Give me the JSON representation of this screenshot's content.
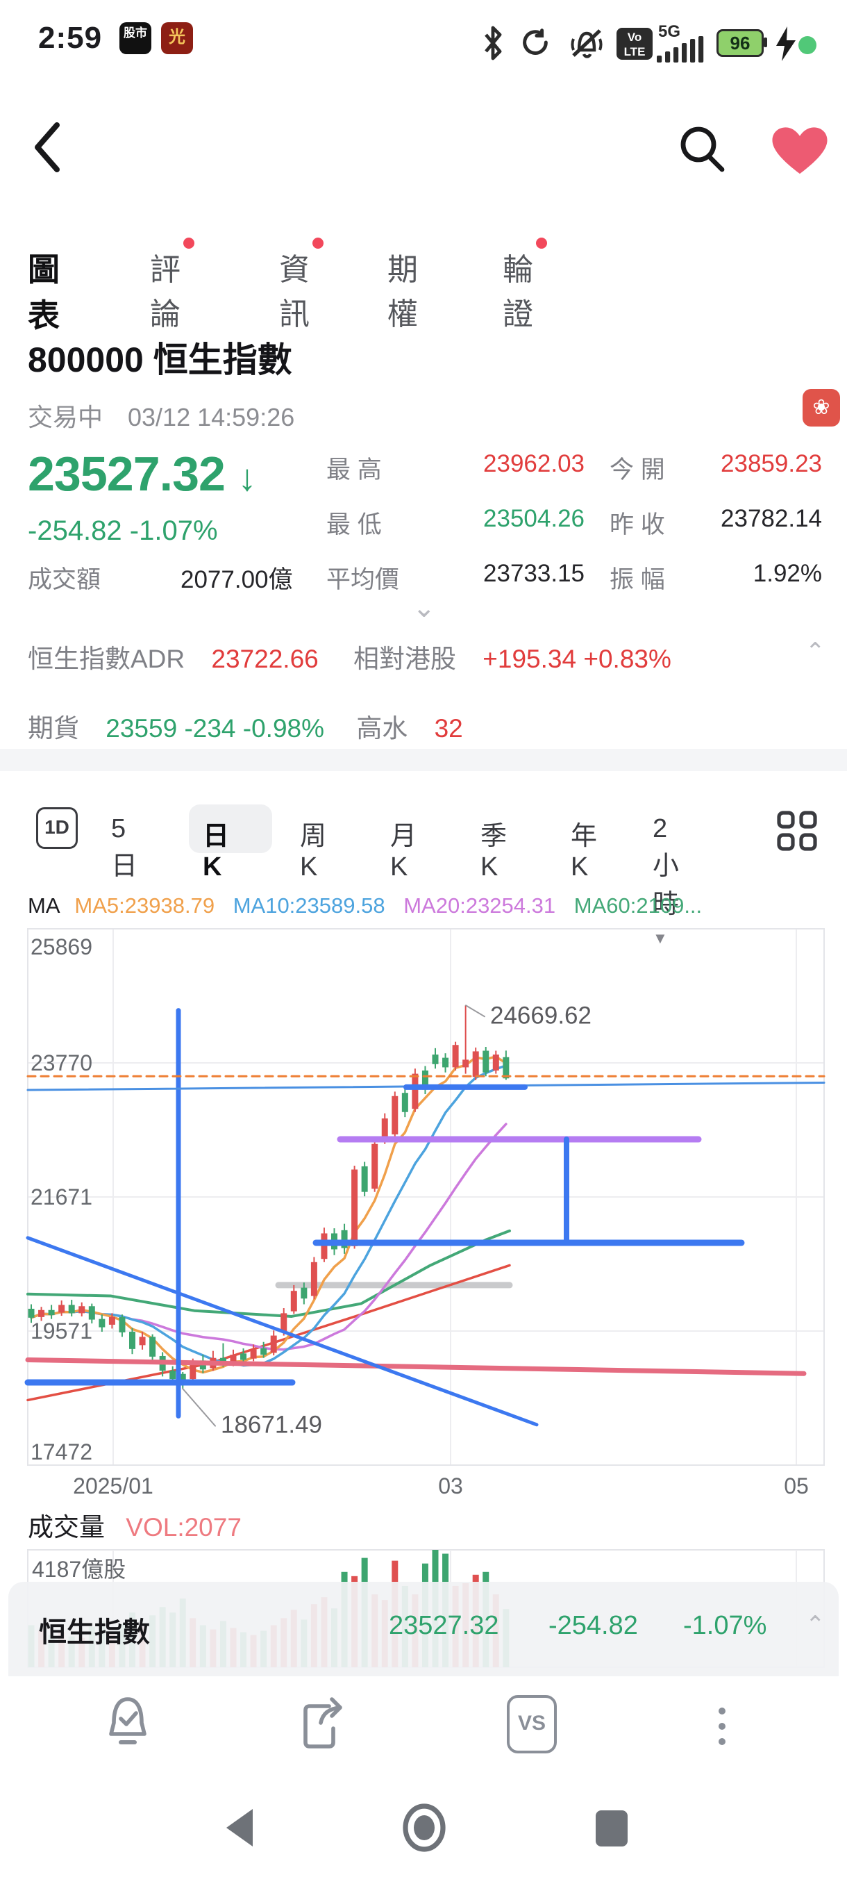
{
  "colors": {
    "up_red": "#e13c3c",
    "down_green": "#2ea26c",
    "candle_red": "#df5050",
    "candle_green": "#3da56f",
    "ma5": "#f0a04b",
    "ma10": "#4ca3de",
    "ma20": "#cc79dc",
    "ma60": "#43a877",
    "draw_blue": "#3c78f0",
    "draw_purple": "#b57cf2",
    "rose": "#e56b80",
    "thin_red": "#e34f44",
    "gray_level": "#c9cacc",
    "dashed_orange": "#ee7e32",
    "grid": "#ededf0",
    "axis_text": "#66696e"
  },
  "status_bar": {
    "time": "2:59",
    "app_icon_1": "股市",
    "app_icon_2": "光",
    "volte_top": "Vo",
    "volte_bottom": "LTE",
    "network": "5G",
    "battery_percent": "96"
  },
  "header": {
    "back_icon": "back-chevron",
    "search_icon": "magnifier",
    "favorite_icon": "heart"
  },
  "tabs": {
    "items": [
      {
        "label": "圖表",
        "active": true,
        "dot": false
      },
      {
        "label": "評論",
        "active": false,
        "dot": true
      },
      {
        "label": "資訊",
        "active": false,
        "dot": true
      },
      {
        "label": "期權",
        "active": false,
        "dot": false
      },
      {
        "label": "輪證",
        "active": false,
        "dot": true
      }
    ]
  },
  "stock": {
    "code_name": "800000  恒生指數",
    "status": "交易中",
    "timestamp": "03/12 14:59:26",
    "market_badge": "❀"
  },
  "quote": {
    "price": "23527.32",
    "direction": "↓",
    "change": "-254.82 -1.07%",
    "high_label": "最  高",
    "high": "23962.03",
    "open_label": "今  開",
    "open": "23859.23",
    "low_label": "最  低",
    "low": "23504.26",
    "prev_close_label": "昨  收",
    "prev_close": "23782.14",
    "turnover_label": "成交額",
    "turnover": "2077.00億",
    "avg_label": "平均價",
    "avg": "23733.15",
    "amp_label": "振  幅",
    "amplitude": "1.92%"
  },
  "adr": {
    "name": "恒生指數ADR",
    "value": "23722.66",
    "rel_label": "相對港股",
    "rel_value": "+195.34  +0.83%"
  },
  "futures": {
    "label": "期貨",
    "value": "23559  -234  -0.98%",
    "premium_label": "高水",
    "premium": "32"
  },
  "periods": {
    "items": [
      "5日",
      "日K",
      "周K",
      "月K",
      "季K",
      "年K"
    ],
    "one_d": "1D",
    "interval": "2小時",
    "interval_arrow": "▼",
    "active": "日K"
  },
  "ma_labels": {
    "prefix": "MA",
    "ma5": "MA5:23938.79",
    "ma10": "MA10:23589.58",
    "ma20": "MA20:23254.31",
    "ma60": "MA60:2109..."
  },
  "chart_data": {
    "type": "candlestick",
    "y_ticks": [
      25869,
      23770,
      21671,
      19571,
      17472
    ],
    "x_ticks": [
      {
        "x": 163,
        "label": "2025/01"
      },
      {
        "x": 649,
        "label": "03"
      },
      {
        "x": 1147,
        "label": "05"
      }
    ],
    "candles": [
      [
        19920,
        19990,
        19700,
        19780,
        1500
      ],
      [
        19790,
        19950,
        19730,
        19900,
        1300
      ],
      [
        19900,
        19980,
        19760,
        19820,
        1150
      ],
      [
        19860,
        20050,
        19810,
        19980,
        1250
      ],
      [
        19980,
        20060,
        19800,
        19850,
        1100
      ],
      [
        19850,
        20020,
        19800,
        19960,
        1050
      ],
      [
        19960,
        20000,
        19690,
        19750,
        1450
      ],
      [
        19760,
        19830,
        19560,
        19630,
        1650
      ],
      [
        19670,
        19850,
        19610,
        19790,
        1200
      ],
      [
        19790,
        19830,
        19480,
        19550,
        1550
      ],
      [
        19560,
        19620,
        19210,
        19290,
        1950
      ],
      [
        19350,
        19560,
        19280,
        19480,
        1450
      ],
      [
        19480,
        19520,
        19090,
        19170,
        1850
      ],
      [
        19180,
        19240,
        18860,
        18950,
        2150
      ],
      [
        18950,
        19020,
        18740,
        18820,
        1950
      ],
      [
        18900,
        18930,
        18671.49,
        18810,
        2450
      ],
      [
        18820,
        19140,
        18790,
        19070,
        1750
      ],
      [
        19110,
        19200,
        18910,
        18970,
        1500
      ],
      [
        18990,
        19260,
        18950,
        19150,
        1350
      ],
      [
        19150,
        19380,
        19010,
        19060,
        1650
      ],
      [
        19080,
        19280,
        19020,
        19200,
        1400
      ],
      [
        19220,
        19300,
        19060,
        19120,
        1250
      ],
      [
        19140,
        19360,
        19100,
        19280,
        1150
      ],
      [
        19300,
        19400,
        19150,
        19200,
        1300
      ],
      [
        19230,
        19580,
        19190,
        19500,
        1500
      ],
      [
        19550,
        19930,
        19500,
        19850,
        1750
      ],
      [
        19880,
        20290,
        19840,
        20200,
        2050
      ],
      [
        20250,
        20330,
        19990,
        20080,
        1700
      ],
      [
        20120,
        20730,
        20070,
        20650,
        2250
      ],
      [
        20700,
        21190,
        20650,
        21100,
        2500
      ],
      [
        21100,
        21180,
        20760,
        20850,
        2100
      ],
      [
        21150,
        21250,
        20780,
        20870,
        3400
      ],
      [
        20900,
        22160,
        20860,
        22100,
        3250
      ],
      [
        22150,
        22220,
        21680,
        21750,
        3900
      ],
      [
        21800,
        22560,
        21750,
        22500,
        2600
      ],
      [
        22550,
        22980,
        22500,
        22900,
        2400
      ],
      [
        22650,
        23320,
        22600,
        23250,
        3800
      ],
      [
        23300,
        23380,
        22920,
        23000,
        2900
      ],
      [
        23050,
        23680,
        23000,
        23600,
        2600
      ],
      [
        23650,
        23720,
        23280,
        23350,
        3700
      ],
      [
        23900,
        24000,
        23680,
        23750,
        4187
      ],
      [
        23850,
        23920,
        23620,
        23700,
        4050
      ],
      [
        23700,
        24100,
        23650,
        24050,
        2900
      ],
      [
        23700,
        24669.62,
        23600,
        23820,
        3000
      ],
      [
        23550,
        24010,
        23500,
        23950,
        3300
      ],
      [
        23960,
        24020,
        23560,
        23620,
        3400
      ],
      [
        23650,
        23960,
        23600,
        23900,
        2600
      ],
      [
        23859.23,
        23962.03,
        23504.26,
        23527.32,
        2077
      ]
    ],
    "annotations": [
      {
        "text": "24669.62",
        "anchor_x": 671,
        "anchor_price": 24669.62,
        "text_x": 706,
        "text_price": 24430
      },
      {
        "text": "18671.49",
        "anchor_x": 263,
        "anchor_price": 18671.49,
        "text_x": 318,
        "text_price": 18020
      }
    ],
    "price_line": {
      "price": 23560,
      "color": "#ee7e32"
    },
    "curves": [
      {
        "name": "ma60-line",
        "color": "#43a877",
        "width": 4,
        "points": [
          [
            40,
            20150
          ],
          [
            160,
            20120
          ],
          [
            280,
            19890
          ],
          [
            420,
            19800
          ],
          [
            520,
            20000
          ],
          [
            620,
            20600
          ],
          [
            700,
            21000
          ],
          [
            734,
            21140
          ]
        ]
      },
      {
        "name": "ma120-line",
        "color": "#e34f44",
        "width": 3.5,
        "points": [
          [
            40,
            18490
          ],
          [
            300,
            19060
          ],
          [
            520,
            19830
          ],
          [
            734,
            20600
          ]
        ]
      }
    ],
    "drawings": [
      {
        "name": "gray-level",
        "color": "#c9cacc",
        "width": 9,
        "points": [
          [
            401,
            20290
          ],
          [
            734,
            20290
          ]
        ]
      },
      {
        "name": "rose-trendline",
        "color": "#e56b80",
        "width": 7,
        "points": [
          [
            40,
            19120
          ],
          [
            1158,
            18905
          ]
        ]
      },
      {
        "name": "vertical-line",
        "color": "#3c78f0",
        "width": 7,
        "points": [
          [
            257,
            24590
          ],
          [
            257,
            18240
          ]
        ]
      },
      {
        "name": "trend-down-diagonal",
        "color": "#3c78f0",
        "width": 5,
        "points": [
          [
            40,
            21030
          ],
          [
            773,
            18105
          ]
        ]
      },
      {
        "name": "trend-flat-long",
        "color": "#4a90e2",
        "width": 3,
        "points": [
          [
            40,
            23345
          ],
          [
            1187,
            23460
          ]
        ]
      },
      {
        "name": "support-left",
        "color": "#3c78f0",
        "width": 9,
        "points": [
          [
            40,
            18766
          ],
          [
            421,
            18766
          ]
        ]
      },
      {
        "name": "resistance-top",
        "color": "#3c78f0",
        "width": 8,
        "points": [
          [
            585,
            23390
          ],
          [
            756,
            23390
          ]
        ]
      },
      {
        "name": "range-top-purple",
        "color": "#b57cf2",
        "width": 9,
        "points": [
          [
            490,
            22573
          ],
          [
            1006,
            22573
          ]
        ]
      },
      {
        "name": "range-connector",
        "color": "#3c78f0",
        "width": 8,
        "points": [
          [
            816,
            22573
          ],
          [
            816,
            20953
          ]
        ]
      },
      {
        "name": "range-bottom",
        "color": "#3c78f0",
        "width": 9,
        "points": [
          [
            455,
            20953
          ],
          [
            1068,
            20953
          ]
        ]
      }
    ],
    "volume": {
      "axis_label": "4187億股",
      "max": 4187
    }
  },
  "volume_section": {
    "title": "成交量",
    "vol_label": "VOL:2077"
  },
  "overlay_bar": {
    "name": "恒生指數",
    "price": "23527.32",
    "change": "-254.82",
    "pct": "-1.07%"
  },
  "toolbar": {
    "icons": [
      "alert-bell-check",
      "share",
      "compare-vs",
      "more-kebab"
    ],
    "vs_label": "VS"
  },
  "nav_bar": {
    "icons": [
      "back-triangle",
      "home-circle",
      "recents-square"
    ]
  }
}
